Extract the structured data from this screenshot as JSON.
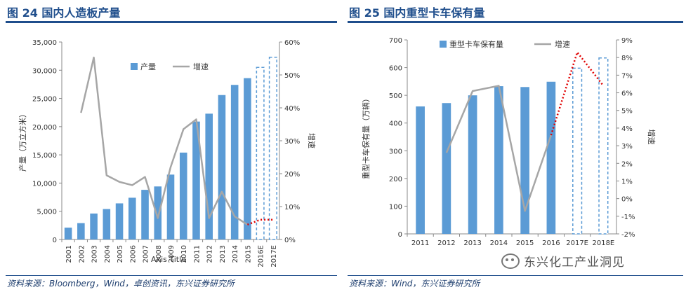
{
  "left": {
    "title": "图 24 国内人造板产量",
    "source": "资料来源：Bloomberg，Wind，卓创资讯，东兴证券研究所",
    "chart_data": {
      "type": "bar",
      "title": "",
      "categories": [
        "2001",
        "2002",
        "2003",
        "2004",
        "2005",
        "2006",
        "2007",
        "2008",
        "2009",
        "2010",
        "2011",
        "2012",
        "2013",
        "2014",
        "2015",
        "2016E",
        "2017E"
      ],
      "bar_series": {
        "name": "产量",
        "values": [
          2100,
          2900,
          4600,
          5400,
          6400,
          7400,
          8800,
          9400,
          11500,
          15400,
          20900,
          22300,
          25600,
          27400,
          28600,
          30500,
          32300
        ]
      },
      "forecast_categories": [
        "2016E",
        "2017E"
      ],
      "line_series": {
        "name": "增速",
        "values": [
          null,
          38.5,
          55.3,
          19.5,
          17.5,
          16.5,
          19.0,
          6.5,
          22.0,
          33.5,
          36.5,
          6.5,
          14.5,
          7.0,
          4.5,
          6.0,
          6.0
        ]
      },
      "ylabel": "产量（万立方米）",
      "y2label": "增速",
      "xlabel": "Axis Title",
      "ylim": [
        0,
        35000
      ],
      "y2lim": [
        0,
        60
      ],
      "yticks": [
        "0",
        "5,000",
        "10,000",
        "15,000",
        "20,000",
        "25,000",
        "30,000",
        "35,000"
      ],
      "y2ticks": [
        "0%",
        "10%",
        "20%",
        "30%",
        "40%",
        "50%",
        "60%"
      ],
      "legend": [
        "产量",
        "增速"
      ],
      "legend_position": "top-right"
    }
  },
  "right": {
    "title": "图 25 国内重型卡车保有量",
    "source": "资料来源：Wind，东兴证券研究所",
    "chart_data": {
      "type": "bar",
      "title": "",
      "categories": [
        "2011",
        "2012",
        "2013",
        "2014",
        "2015",
        "2016",
        "2017E",
        "2018E"
      ],
      "bar_series": {
        "name": "重型卡车保有量",
        "values": [
          460,
          472,
          500,
          533,
          530,
          549,
          598,
          635
        ]
      },
      "forecast_categories": [
        "2017E",
        "2018E"
      ],
      "line_series": {
        "name": "增速",
        "values": [
          null,
          2.6,
          6.1,
          6.4,
          -0.7,
          3.6,
          8.3,
          6.4
        ]
      },
      "ylabel": "重型卡车保有量（万辆）",
      "y2label": "增速",
      "xlabel": "",
      "ylim": [
        0,
        700
      ],
      "y2lim": [
        -2,
        9
      ],
      "yticks": [
        "0",
        "100",
        "200",
        "300",
        "400",
        "500",
        "600",
        "700"
      ],
      "y2ticks": [
        "-2%",
        "-1%",
        "0%",
        "1%",
        "2%",
        "3%",
        "4%",
        "5%",
        "6%",
        "7%",
        "8%",
        "9%"
      ],
      "legend": [
        "重型卡车保有量",
        "增速"
      ],
      "legend_position": "top"
    }
  },
  "watermark": {
    "text": "东兴化工产业洞见",
    "icon": "wechat-icon"
  },
  "colors": {
    "bar": "#5b9bd5",
    "line": "#a6a6a6",
    "forecast_line": "#e00000",
    "title": "#1f4e8c"
  }
}
